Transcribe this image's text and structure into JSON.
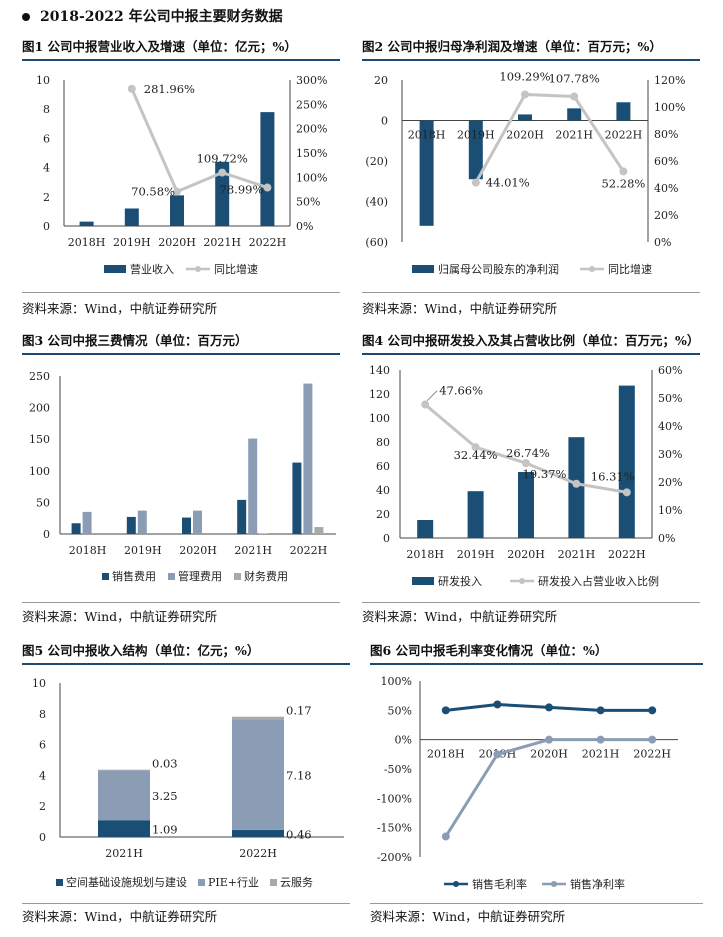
{
  "page_title": "2018-2022 年公司中报主要财务数据",
  "source_text": "资料来源：Wind，中航证券研究所",
  "colors": {
    "navy": "#1a4e74",
    "slate": "#8b9db5",
    "gray": "#c4c4c4",
    "lightgray": "#a9a9a9",
    "rule": "#1d4a6e"
  },
  "chart_data": [
    {
      "id": "fig1",
      "type": "bar+line",
      "title": "图1 公司中报营业收入及增速（单位：亿元；%）",
      "categories": [
        "2018H",
        "2019H",
        "2020H",
        "2021H",
        "2022H"
      ],
      "series": [
        {
          "name": "营业收入",
          "axis": "left",
          "kind": "bar",
          "values": [
            0.3,
            1.2,
            2.1,
            4.4,
            7.8
          ]
        },
        {
          "name": "同比增速",
          "axis": "right",
          "kind": "line",
          "values": [
            null,
            281.96,
            70.58,
            109.72,
            78.99
          ],
          "labels": [
            "",
            "281.96%",
            "70.58%",
            "109.72%",
            "78.99%"
          ]
        }
      ],
      "left_ticks": [
        "0",
        "2",
        "4",
        "6",
        "8",
        "10"
      ],
      "ylim_left": [
        0,
        10
      ],
      "right_ticks": [
        "0%",
        "50%",
        "100%",
        "150%",
        "200%",
        "250%",
        "300%"
      ],
      "ylim_right": [
        0,
        300
      ],
      "legend": [
        "营业收入",
        "同比增速"
      ]
    },
    {
      "id": "fig2",
      "type": "bar+line",
      "title": "图2 公司中报归母净利润及增速（单位：百万元；%）",
      "categories": [
        "2018H",
        "2019H",
        "2020H",
        "2021H",
        "2022H"
      ],
      "series": [
        {
          "name": "归属母公司股东的净利润",
          "axis": "left",
          "kind": "bar",
          "values": [
            -52,
            -29,
            3,
            6,
            9
          ]
        },
        {
          "name": "同比增速",
          "axis": "right",
          "kind": "line",
          "values": [
            null,
            44.01,
            109.29,
            107.78,
            52.28
          ],
          "labels": [
            "",
            "44.01%",
            "109.29%",
            "107.78%",
            "52.28%"
          ]
        }
      ],
      "left_ticks": [
        "(60)",
        "(40)",
        "(20)",
        "0",
        "20"
      ],
      "ylim_left": [
        -60,
        20
      ],
      "right_ticks": [
        "0%",
        "20%",
        "40%",
        "60%",
        "80%",
        "100%",
        "120%"
      ],
      "ylim_right": [
        0,
        120
      ],
      "legend": [
        "归属母公司股东的净利润",
        "同比增速"
      ]
    },
    {
      "id": "fig3",
      "type": "grouped-bar",
      "title": "图3 公司中报三费情况（单位：百万元）",
      "categories": [
        "2018H",
        "2019H",
        "2020H",
        "2021H",
        "2022H"
      ],
      "series": [
        {
          "name": "销售费用",
          "values": [
            17,
            27,
            26,
            54,
            113
          ]
        },
        {
          "name": "管理费用",
          "values": [
            35,
            37,
            37,
            151,
            238
          ]
        },
        {
          "name": "财务费用",
          "values": [
            0,
            0,
            0,
            1,
            11
          ]
        }
      ],
      "left_ticks": [
        "0",
        "50",
        "100",
        "150",
        "200",
        "250"
      ],
      "ylim": [
        0,
        250
      ],
      "legend": [
        "销售费用",
        "管理费用",
        "财务费用"
      ]
    },
    {
      "id": "fig4",
      "type": "bar+line",
      "title": "图4 公司中报研发投入及其占营收比例（单位：百万元；%）",
      "categories": [
        "2018H",
        "2019H",
        "2020H",
        "2021H",
        "2022H"
      ],
      "series": [
        {
          "name": "研发投入",
          "axis": "left",
          "kind": "bar",
          "values": [
            15,
            39,
            55,
            84,
            127
          ]
        },
        {
          "name": "研发投入占营业收入比例",
          "axis": "right",
          "kind": "line",
          "values": [
            47.66,
            32.44,
            26.74,
            19.37,
            16.31
          ],
          "labels": [
            "47.66%",
            "32.44%",
            "26.74%",
            "19.37%",
            "16.31%"
          ]
        }
      ],
      "left_ticks": [
        "0",
        "20",
        "40",
        "60",
        "80",
        "100",
        "120",
        "140"
      ],
      "ylim_left": [
        0,
        140
      ],
      "right_ticks": [
        "0%",
        "10%",
        "20%",
        "30%",
        "40%",
        "50%",
        "60%"
      ],
      "ylim_right": [
        0,
        60
      ],
      "legend": [
        "研发投入",
        "研发投入占营业收入比例"
      ]
    },
    {
      "id": "fig5",
      "type": "stacked-bar",
      "title": "图5 公司中报收入结构（单位：亿元；%）",
      "categories": [
        "2021H",
        "2022H"
      ],
      "series": [
        {
          "name": "空间基础设施规划与建设",
          "values": [
            1.09,
            0.46
          ],
          "labels": [
            "1.09",
            "0.46"
          ]
        },
        {
          "name": "PIE+行业",
          "values": [
            3.25,
            7.18
          ],
          "labels": [
            "3.25",
            "7.18"
          ]
        },
        {
          "name": "云服务",
          "values": [
            0.03,
            0.17
          ],
          "labels": [
            "0.03",
            "0.17"
          ]
        }
      ],
      "left_ticks": [
        "0",
        "2",
        "4",
        "6",
        "8",
        "10"
      ],
      "ylim": [
        0,
        10
      ],
      "legend": [
        "空间基础设施规划与建设",
        "PIE+行业",
        "云服务"
      ]
    },
    {
      "id": "fig6",
      "type": "line",
      "title": "图6 公司中报毛利率变化情况（单位：%）",
      "categories": [
        "2018H",
        "2019H",
        "2020H",
        "2021H",
        "2022H"
      ],
      "series": [
        {
          "name": "销售毛利率",
          "values": [
            50,
            60,
            55,
            50,
            50
          ]
        },
        {
          "name": "销售净利率",
          "values": [
            -165,
            -25,
            0,
            0,
            0
          ]
        }
      ],
      "left_ticks": [
        "-200%",
        "-150%",
        "-100%",
        "-50%",
        "0%",
        "50%",
        "100%"
      ],
      "ylim": [
        -200,
        100
      ],
      "legend": [
        "销售毛利率",
        "销售净利率"
      ]
    }
  ]
}
